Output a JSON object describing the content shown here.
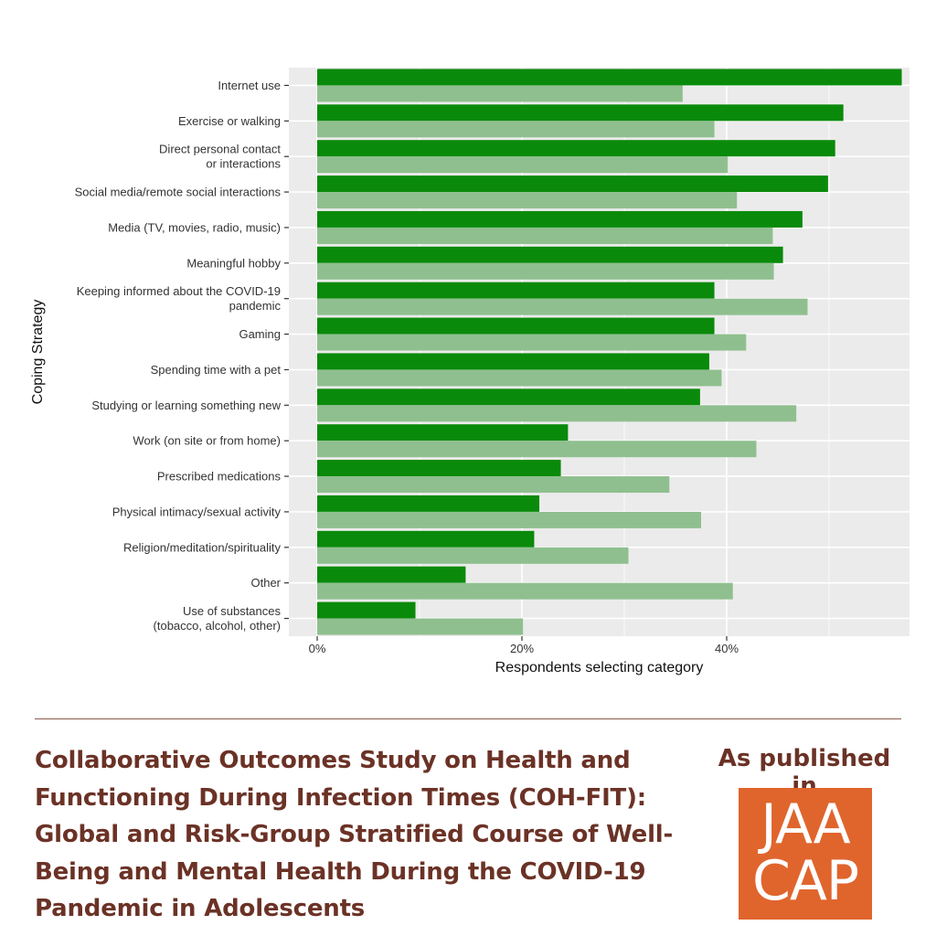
{
  "chart_data": {
    "type": "bar",
    "orientation": "horizontal",
    "xlabel": "Respondents selecting category",
    "ylabel": "Coping Strategy",
    "xlim": [
      0,
      0.577
    ],
    "x_ticks": [
      {
        "value": 0,
        "label": "0%"
      },
      {
        "value": 0.2,
        "label": "20%"
      },
      {
        "value": 0.4,
        "label": "40%"
      }
    ],
    "grid": true,
    "categories": [
      [
        "Internet use"
      ],
      [
        "Exercise or walking"
      ],
      [
        "Direct personal contact",
        "or interactions"
      ],
      [
        "Social media/remote social interactions"
      ],
      [
        "Media (TV, movies, radio, music)"
      ],
      [
        "Meaningful hobby"
      ],
      [
        "Keeping informed about the COVID-19",
        "pandemic"
      ],
      [
        "Gaming"
      ],
      [
        "Spending time with a pet"
      ],
      [
        "Studying or learning something new"
      ],
      [
        "Work (on site or from home)"
      ],
      [
        "Prescribed medications"
      ],
      [
        "Physical intimacy/sexual activity"
      ],
      [
        "Religion/meditation/spirituality"
      ],
      [
        "Other"
      ],
      [
        "Use of substances",
        "(tobacco, alcohol, other)"
      ]
    ],
    "series": [
      {
        "color": "#0a8a0a",
        "values": [
          0.571,
          0.514,
          0.506,
          0.499,
          0.474,
          0.455,
          0.388,
          0.388,
          0.383,
          0.374,
          0.245,
          0.238,
          0.217,
          0.212,
          0.145,
          0.096
        ]
      },
      {
        "color": "#8fbf8f",
        "values": [
          0.357,
          0.388,
          0.401,
          0.41,
          0.445,
          0.446,
          0.479,
          0.419,
          0.395,
          0.468,
          0.429,
          0.344,
          0.375,
          0.304,
          0.406,
          0.201
        ]
      }
    ],
    "panel_background": "#ebebeb",
    "grid_color": "#ffffff"
  },
  "footer": {
    "paper_title": "Collaborative Outcomes Study on Health and Functioning During Infection Times (COH-FIT): Global and Risk-Group Stratified Course of Well-Being and Mental Health During the COVID-19 Pandemic in Adolescents",
    "published_label": "As published in",
    "journal_logo_line1": "JAA",
    "journal_logo_line2": "CAP",
    "text_color": "#6b3226",
    "logo_color": "#e0652c"
  }
}
